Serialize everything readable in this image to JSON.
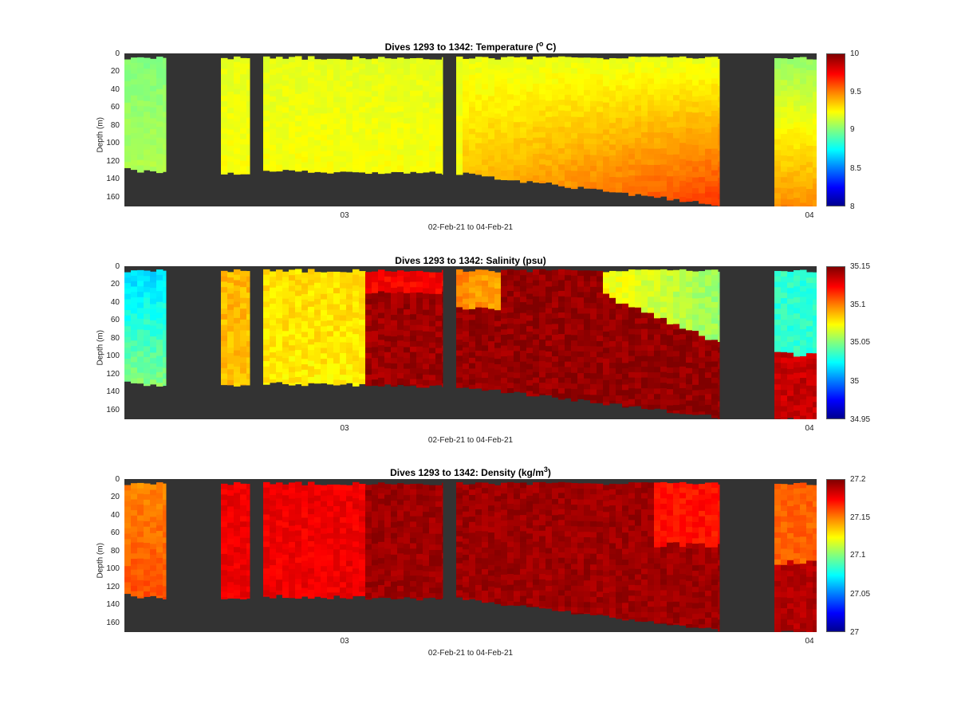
{
  "chart_data": [
    {
      "type": "heatmap",
      "title": "Dives 1293 to 1342: Temperature (°C)",
      "title_parts": [
        "Dives 1293 to 1342: Temperature (",
        "o",
        " C)"
      ],
      "ylabel": "Depth (m)",
      "xlabel": "02-Feb-21 to 04-Feb-21",
      "yticks": [
        "0",
        "20",
        "40",
        "60",
        "80",
        "100",
        "120",
        "140",
        "160"
      ],
      "ylim": [
        170,
        0
      ],
      "xticks": [
        "03",
        "04"
      ],
      "colorbar": {
        "min": 8,
        "max": 10,
        "ticks": [
          "10",
          "9.5",
          "9",
          "8.5",
          "8"
        ]
      },
      "colormap": "jet",
      "variable": "temp"
    },
    {
      "type": "heatmap",
      "title": "Dives 1293 to 1342: Salinity (psu)",
      "title_parts": [
        "Dives 1293 to 1342: Salinity (psu)",
        "",
        ""
      ],
      "ylabel": "Depth (m)",
      "xlabel": "02-Feb-21 to 04-Feb-21",
      "yticks": [
        "0",
        "20",
        "40",
        "60",
        "80",
        "100",
        "120",
        "140",
        "160"
      ],
      "ylim": [
        170,
        0
      ],
      "xticks": [
        "03",
        "04"
      ],
      "colorbar": {
        "min": 34.95,
        "max": 35.15,
        "ticks": [
          "35.15",
          "35.1",
          "35.05",
          "35",
          "34.95"
        ]
      },
      "colormap": "jet",
      "variable": "sal"
    },
    {
      "type": "heatmap",
      "title": "Dives 1293 to 1342: Density (kg/m³)",
      "title_parts": [
        "Dives 1293 to 1342: Density (kg/m",
        "3",
        ")"
      ],
      "ylabel": "Depth (m)",
      "xlabel": "02-Feb-21 to 04-Feb-21",
      "yticks": [
        "0",
        "20",
        "40",
        "60",
        "80",
        "100",
        "120",
        "140",
        "160"
      ],
      "ylim": [
        170,
        0
      ],
      "xticks": [
        "03",
        "04"
      ],
      "colorbar": {
        "min": 27,
        "max": 27.2,
        "ticks": [
          "27.2",
          "27.15",
          "27.1",
          "27.05",
          "27"
        ]
      },
      "colormap": "jet",
      "variable": "dens"
    }
  ]
}
